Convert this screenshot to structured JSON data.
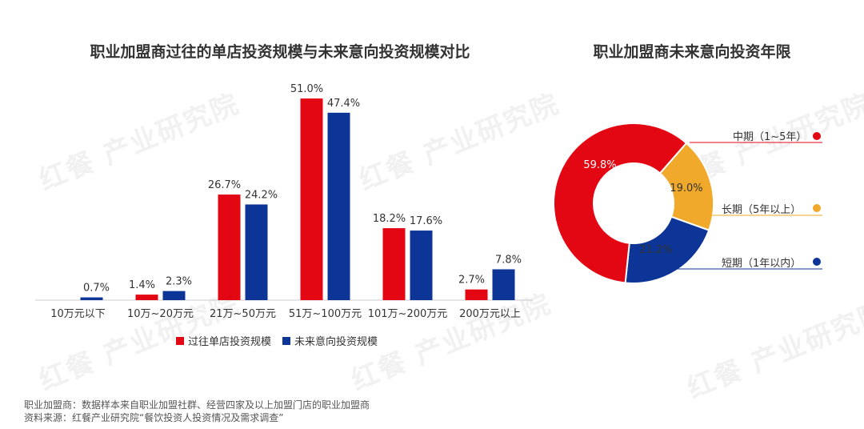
{
  "watermark_text": "红餐 产业研究院",
  "chart_data": [
    {
      "type": "bar",
      "title": "职业加盟商过往的单店投资规模与未来意向投资规模对比",
      "categories": [
        "10万元以下",
        "10万~20万元",
        "21万~50万元",
        "51万~100万元",
        "101万~200万元",
        "200万元以上"
      ],
      "series": [
        {
          "name": "过往单店投资规模",
          "color": "#e30613",
          "values": [
            null,
            1.4,
            26.7,
            51.0,
            18.2,
            2.7
          ]
        },
        {
          "name": "未来意向投资规模",
          "color": "#0c3597",
          "values": [
            0.7,
            2.3,
            24.2,
            47.4,
            17.6,
            7.8
          ]
        }
      ],
      "unit": "%",
      "legend_position": "bottom"
    },
    {
      "type": "pie",
      "title": "职业加盟商未来意向投资年限",
      "slices": [
        {
          "label": "中期（1~5年）",
          "value": 59.8,
          "color": "#e30613"
        },
        {
          "label": "长期（5年以上）",
          "value": 19.0,
          "color": "#f0a92a"
        },
        {
          "label": "短期（1年以内）",
          "value": 21.2,
          "color": "#0c3597"
        }
      ],
      "unit": "%"
    }
  ],
  "footnotes": {
    "sample": "职业加盟商：数据样本来自职业加盟社群、经营四家及以上加盟门店的职业加盟商",
    "source": "资料来源：红餐产业研究院“餐饮投资人投资情况及需求调查”"
  }
}
